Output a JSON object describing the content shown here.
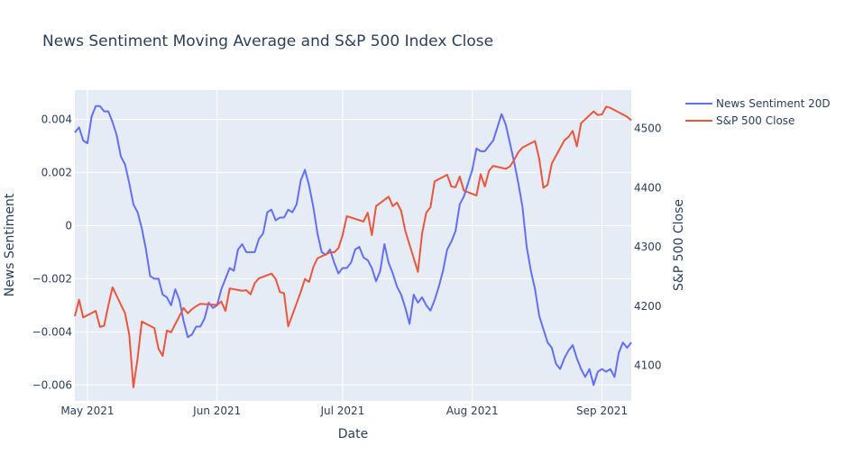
{
  "chart_data": {
    "type": "line",
    "title": "News Sentiment Moving Average and S&P 500 Index Close",
    "xlabel": "Date",
    "ylabel": "News Sentiment",
    "y2label": "S&P 500 Close",
    "x_ticks": [
      {
        "date": "2021-05-01",
        "label": "May 2021"
      },
      {
        "date": "2021-06-01",
        "label": "Jun 2021"
      },
      {
        "date": "2021-07-01",
        "label": "Jul 2021"
      },
      {
        "date": "2021-08-01",
        "label": "Aug 2021"
      },
      {
        "date": "2021-09-01",
        "label": "Sep 2021"
      }
    ],
    "x_range": [
      "2021-04-28",
      "2021-09-08"
    ],
    "y_ticks": [
      {
        "value": -0.006,
        "label": "−0.006"
      },
      {
        "value": -0.004,
        "label": "−0.004"
      },
      {
        "value": -0.002,
        "label": "−0.002"
      },
      {
        "value": 0,
        "label": "0"
      },
      {
        "value": 0.002,
        "label": "0.002"
      },
      {
        "value": 0.004,
        "label": "0.004"
      }
    ],
    "ylim": [
      -0.0066,
      0.0051
    ],
    "y2_ticks": [
      {
        "value": 4100,
        "label": "4100"
      },
      {
        "value": 4200,
        "label": "4200"
      },
      {
        "value": 4300,
        "label": "4300"
      },
      {
        "value": 4400,
        "label": "4400"
      },
      {
        "value": 4500,
        "label": "4500"
      }
    ],
    "y2lim": [
      4040,
      4565
    ],
    "grid": true,
    "legend_position": "top-right",
    "series": [
      {
        "name": "News Sentiment 20D",
        "axis": "y",
        "color": "#636efa",
        "points": [
          [
            "2021-04-28",
            0.0035
          ],
          [
            "2021-04-29",
            0.0037
          ],
          [
            "2021-04-30",
            0.0032
          ],
          [
            "2021-05-01",
            0.0031
          ],
          [
            "2021-05-02",
            0.0041
          ],
          [
            "2021-05-03",
            0.0045
          ],
          [
            "2021-05-04",
            0.0045
          ],
          [
            "2021-05-05",
            0.0043
          ],
          [
            "2021-05-06",
            0.0043
          ],
          [
            "2021-05-07",
            0.0039
          ],
          [
            "2021-05-08",
            0.0034
          ],
          [
            "2021-05-09",
            0.0026
          ],
          [
            "2021-05-10",
            0.0023
          ],
          [
            "2021-05-11",
            0.0016
          ],
          [
            "2021-05-12",
            0.0008
          ],
          [
            "2021-05-13",
            0.0005
          ],
          [
            "2021-05-14",
            -0.0001
          ],
          [
            "2021-05-15",
            -0.0009
          ],
          [
            "2021-05-16",
            -0.0019
          ],
          [
            "2021-05-17",
            -0.002
          ],
          [
            "2021-05-18",
            -0.002
          ],
          [
            "2021-05-19",
            -0.0026
          ],
          [
            "2021-05-20",
            -0.0027
          ],
          [
            "2021-05-21",
            -0.003
          ],
          [
            "2021-05-22",
            -0.0024
          ],
          [
            "2021-05-23",
            -0.0028
          ],
          [
            "2021-05-24",
            -0.0036
          ],
          [
            "2021-05-25",
            -0.0042
          ],
          [
            "2021-05-26",
            -0.0041
          ],
          [
            "2021-05-27",
            -0.0038
          ],
          [
            "2021-05-28",
            -0.0038
          ],
          [
            "2021-05-29",
            -0.0035
          ],
          [
            "2021-05-30",
            -0.0029
          ],
          [
            "2021-05-31",
            -0.0031
          ],
          [
            "2021-06-01",
            -0.003
          ],
          [
            "2021-06-02",
            -0.0024
          ],
          [
            "2021-06-03",
            -0.002
          ],
          [
            "2021-06-04",
            -0.0016
          ],
          [
            "2021-06-05",
            -0.0017
          ],
          [
            "2021-06-06",
            -0.0009
          ],
          [
            "2021-06-07",
            -0.0007
          ],
          [
            "2021-06-08",
            -0.001
          ],
          [
            "2021-06-09",
            -0.001
          ],
          [
            "2021-06-10",
            -0.001
          ],
          [
            "2021-06-11",
            -0.0005
          ],
          [
            "2021-06-12",
            -0.0003
          ],
          [
            "2021-06-13",
            0.0005
          ],
          [
            "2021-06-14",
            0.0006
          ],
          [
            "2021-06-15",
            0.0002
          ],
          [
            "2021-06-16",
            0.0003
          ],
          [
            "2021-06-17",
            0.0003
          ],
          [
            "2021-06-18",
            0.0006
          ],
          [
            "2021-06-19",
            0.0005
          ],
          [
            "2021-06-20",
            0.0008
          ],
          [
            "2021-06-21",
            0.0017
          ],
          [
            "2021-06-22",
            0.0021
          ],
          [
            "2021-06-23",
            0.0015
          ],
          [
            "2021-06-24",
            0.0007
          ],
          [
            "2021-06-25",
            -0.0003
          ],
          [
            "2021-06-26",
            -0.001
          ],
          [
            "2021-06-27",
            -0.0011
          ],
          [
            "2021-06-28",
            -0.0009
          ],
          [
            "2021-06-29",
            -0.0014
          ],
          [
            "2021-06-30",
            -0.0018
          ],
          [
            "2021-07-01",
            -0.0016
          ],
          [
            "2021-07-02",
            -0.0016
          ],
          [
            "2021-07-03",
            -0.0014
          ],
          [
            "2021-07-04",
            -0.0009
          ],
          [
            "2021-07-05",
            -0.0008
          ],
          [
            "2021-07-06",
            -0.0012
          ],
          [
            "2021-07-07",
            -0.0013
          ],
          [
            "2021-07-08",
            -0.0016
          ],
          [
            "2021-07-09",
            -0.0021
          ],
          [
            "2021-07-10",
            -0.0017
          ],
          [
            "2021-07-11",
            -0.0007
          ],
          [
            "2021-07-12",
            -0.0014
          ],
          [
            "2021-07-13",
            -0.0018
          ],
          [
            "2021-07-14",
            -0.0023
          ],
          [
            "2021-07-15",
            -0.0026
          ],
          [
            "2021-07-16",
            -0.0031
          ],
          [
            "2021-07-17",
            -0.0037
          ],
          [
            "2021-07-18",
            -0.0026
          ],
          [
            "2021-07-19",
            -0.0029
          ],
          [
            "2021-07-20",
            -0.0027
          ],
          [
            "2021-07-21",
            -0.003
          ],
          [
            "2021-07-22",
            -0.0032
          ],
          [
            "2021-07-23",
            -0.0028
          ],
          [
            "2021-07-24",
            -0.0023
          ],
          [
            "2021-07-25",
            -0.0017
          ],
          [
            "2021-07-26",
            -0.0009
          ],
          [
            "2021-07-27",
            -0.0006
          ],
          [
            "2021-07-28",
            -0.0002
          ],
          [
            "2021-07-29",
            0.0008
          ],
          [
            "2021-07-30",
            0.0011
          ],
          [
            "2021-07-31",
            0.0016
          ],
          [
            "2021-08-01",
            0.0021
          ],
          [
            "2021-08-02",
            0.0029
          ],
          [
            "2021-08-03",
            0.0028
          ],
          [
            "2021-08-04",
            0.0028
          ],
          [
            "2021-08-05",
            0.003
          ],
          [
            "2021-08-06",
            0.0032
          ],
          [
            "2021-08-07",
            0.0037
          ],
          [
            "2021-08-08",
            0.0042
          ],
          [
            "2021-08-09",
            0.0038
          ],
          [
            "2021-08-10",
            0.0031
          ],
          [
            "2021-08-11",
            0.0024
          ],
          [
            "2021-08-12",
            0.0016
          ],
          [
            "2021-08-13",
            0.0007
          ],
          [
            "2021-08-14",
            -0.0008
          ],
          [
            "2021-08-15",
            -0.0017
          ],
          [
            "2021-08-16",
            -0.0024
          ],
          [
            "2021-08-17",
            -0.0034
          ],
          [
            "2021-08-18",
            -0.0039
          ],
          [
            "2021-08-19",
            -0.0044
          ],
          [
            "2021-08-20",
            -0.0046
          ],
          [
            "2021-08-21",
            -0.0052
          ],
          [
            "2021-08-22",
            -0.0054
          ],
          [
            "2021-08-23",
            -0.005
          ],
          [
            "2021-08-24",
            -0.0047
          ],
          [
            "2021-08-25",
            -0.0045
          ],
          [
            "2021-08-26",
            -0.005
          ],
          [
            "2021-08-27",
            -0.0054
          ],
          [
            "2021-08-28",
            -0.0057
          ],
          [
            "2021-08-29",
            -0.0054
          ],
          [
            "2021-08-30",
            -0.006
          ],
          [
            "2021-08-31",
            -0.0055
          ],
          [
            "2021-09-01",
            -0.0054
          ],
          [
            "2021-09-02",
            -0.0055
          ],
          [
            "2021-09-03",
            -0.0054
          ],
          [
            "2021-09-04",
            -0.0057
          ],
          [
            "2021-09-05",
            -0.0048
          ],
          [
            "2021-09-06",
            -0.0044
          ],
          [
            "2021-09-07",
            -0.0046
          ],
          [
            "2021-09-08",
            -0.0044
          ]
        ]
      },
      {
        "name": "S&P 500 Close",
        "axis": "y2",
        "color": "#ef553b",
        "points": [
          [
            "2021-04-28",
            4183
          ],
          [
            "2021-04-29",
            4211
          ],
          [
            "2021-04-30",
            4181
          ],
          [
            "2021-05-03",
            4192
          ],
          [
            "2021-05-04",
            4165
          ],
          [
            "2021-05-05",
            4167
          ],
          [
            "2021-05-06",
            4201
          ],
          [
            "2021-05-07",
            4232
          ],
          [
            "2021-05-10",
            4188
          ],
          [
            "2021-05-11",
            4152
          ],
          [
            "2021-05-12",
            4063
          ],
          [
            "2021-05-13",
            4112
          ],
          [
            "2021-05-14",
            4174
          ],
          [
            "2021-05-17",
            4163
          ],
          [
            "2021-05-18",
            4128
          ],
          [
            "2021-05-19",
            4116
          ],
          [
            "2021-05-20",
            4159
          ],
          [
            "2021-05-21",
            4156
          ],
          [
            "2021-05-24",
            4197
          ],
          [
            "2021-05-25",
            4188
          ],
          [
            "2021-05-26",
            4195
          ],
          [
            "2021-05-27",
            4200
          ],
          [
            "2021-05-28",
            4204
          ],
          [
            "2021-06-01",
            4202
          ],
          [
            "2021-06-02",
            4208
          ],
          [
            "2021-06-03",
            4192
          ],
          [
            "2021-06-04",
            4230
          ],
          [
            "2021-06-07",
            4226
          ],
          [
            "2021-06-08",
            4227
          ],
          [
            "2021-06-09",
            4220
          ],
          [
            "2021-06-10",
            4239
          ],
          [
            "2021-06-11",
            4247
          ],
          [
            "2021-06-14",
            4255
          ],
          [
            "2021-06-15",
            4246
          ],
          [
            "2021-06-16",
            4224
          ],
          [
            "2021-06-17",
            4222
          ],
          [
            "2021-06-18",
            4166
          ],
          [
            "2021-06-21",
            4224
          ],
          [
            "2021-06-22",
            4246
          ],
          [
            "2021-06-23",
            4241
          ],
          [
            "2021-06-24",
            4266
          ],
          [
            "2021-06-25",
            4281
          ],
          [
            "2021-06-28",
            4291
          ],
          [
            "2021-06-29",
            4291
          ],
          [
            "2021-06-30",
            4298
          ],
          [
            "2021-07-01",
            4320
          ],
          [
            "2021-07-02",
            4352
          ],
          [
            "2021-07-06",
            4343
          ],
          [
            "2021-07-07",
            4358
          ],
          [
            "2021-07-08",
            4320
          ],
          [
            "2021-07-09",
            4369
          ],
          [
            "2021-07-12",
            4385
          ],
          [
            "2021-07-13",
            4369
          ],
          [
            "2021-07-14",
            4375
          ],
          [
            "2021-07-15",
            4361
          ],
          [
            "2021-07-16",
            4327
          ],
          [
            "2021-07-19",
            4258
          ],
          [
            "2021-07-20",
            4323
          ],
          [
            "2021-07-21",
            4358
          ],
          [
            "2021-07-22",
            4367
          ],
          [
            "2021-07-23",
            4411
          ],
          [
            "2021-07-26",
            4422
          ],
          [
            "2021-07-27",
            4402
          ],
          [
            "2021-07-28",
            4401
          ],
          [
            "2021-07-29",
            4419
          ],
          [
            "2021-07-30",
            4395
          ],
          [
            "2021-08-02",
            4387
          ],
          [
            "2021-08-03",
            4423
          ],
          [
            "2021-08-04",
            4402
          ],
          [
            "2021-08-05",
            4429
          ],
          [
            "2021-08-06",
            4437
          ],
          [
            "2021-08-09",
            4432
          ],
          [
            "2021-08-10",
            4436
          ],
          [
            "2021-08-11",
            4447
          ],
          [
            "2021-08-12",
            4460
          ],
          [
            "2021-08-13",
            4468
          ],
          [
            "2021-08-16",
            4479
          ],
          [
            "2021-08-17",
            4449
          ],
          [
            "2021-08-18",
            4400
          ],
          [
            "2021-08-19",
            4405
          ],
          [
            "2021-08-20",
            4441
          ],
          [
            "2021-08-23",
            4480
          ],
          [
            "2021-08-24",
            4486
          ],
          [
            "2021-08-25",
            4496
          ],
          [
            "2021-08-26",
            4470
          ],
          [
            "2021-08-27",
            4509
          ],
          [
            "2021-08-30",
            4529
          ],
          [
            "2021-08-31",
            4523
          ],
          [
            "2021-09-01",
            4524
          ],
          [
            "2021-09-02",
            4537
          ],
          [
            "2021-09-03",
            4535
          ],
          [
            "2021-09-07",
            4520
          ],
          [
            "2021-09-08",
            4514
          ]
        ]
      }
    ]
  }
}
